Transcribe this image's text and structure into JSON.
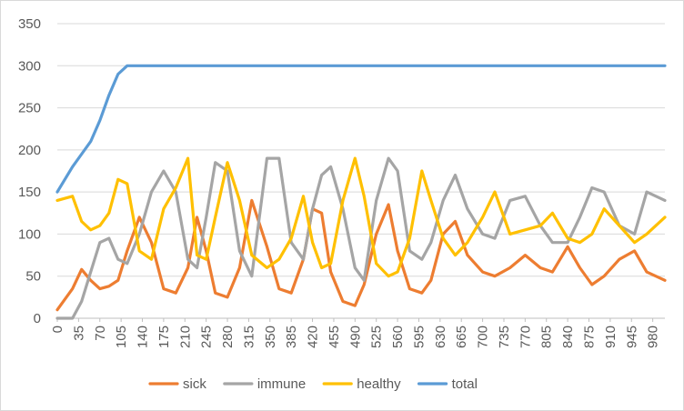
{
  "chart_data": {
    "type": "line",
    "title": "",
    "xlabel": "",
    "ylabel": "",
    "ylim": [
      0,
      350
    ],
    "yticks": [
      0,
      50,
      100,
      150,
      200,
      250,
      300,
      350
    ],
    "xlim": [
      0,
      1000
    ],
    "xticks": [
      0,
      35,
      70,
      105,
      140,
      175,
      210,
      245,
      280,
      315,
      350,
      385,
      420,
      455,
      490,
      525,
      560,
      595,
      630,
      665,
      700,
      735,
      770,
      805,
      840,
      875,
      910,
      945,
      980
    ],
    "xtick_labels": [
      "0",
      "35",
      "70",
      "105",
      "140",
      "175",
      "210",
      "245",
      "280",
      "315",
      "350",
      "385",
      "420",
      "455",
      "490",
      "525",
      "560",
      "595",
      "630",
      "665",
      "700",
      "735",
      "770",
      "805",
      "840",
      "875",
      "910",
      "945",
      "980"
    ],
    "grid": "horizontal",
    "legend": "bottom",
    "x": [
      0,
      25,
      40,
      55,
      70,
      85,
      100,
      115,
      135,
      155,
      175,
      195,
      215,
      230,
      245,
      260,
      280,
      300,
      320,
      345,
      365,
      385,
      405,
      420,
      435,
      450,
      470,
      490,
      505,
      525,
      545,
      560,
      580,
      600,
      615,
      635,
      655,
      675,
      700,
      720,
      745,
      770,
      795,
      815,
      840,
      860,
      880,
      900,
      925,
      950,
      970,
      1000
    ],
    "series": [
      {
        "name": "sick",
        "color": "#ed7d31",
        "values": [
          10,
          35,
          58,
          45,
          35,
          38,
          45,
          80,
          120,
          90,
          35,
          30,
          60,
          120,
          80,
          30,
          25,
          60,
          140,
          85,
          35,
          30,
          70,
          130,
          125,
          55,
          20,
          15,
          40,
          100,
          135,
          80,
          35,
          30,
          45,
          100,
          115,
          75,
          55,
          50,
          60,
          75,
          60,
          55,
          85,
          60,
          40,
          50,
          70,
          80,
          55,
          45
        ]
      },
      {
        "name": "immune",
        "color": "#a5a5a5",
        "values": [
          0,
          0,
          20,
          55,
          90,
          95,
          70,
          65,
          100,
          150,
          175,
          150,
          70,
          60,
          120,
          185,
          175,
          80,
          50,
          190,
          190,
          90,
          70,
          130,
          170,
          180,
          130,
          60,
          45,
          140,
          190,
          175,
          80,
          70,
          90,
          140,
          170,
          130,
          100,
          95,
          140,
          145,
          110,
          90,
          90,
          120,
          155,
          150,
          110,
          100,
          150,
          140
        ]
      },
      {
        "name": "healthy",
        "color": "#ffc000",
        "values": [
          140,
          145,
          115,
          105,
          110,
          125,
          165,
          160,
          80,
          70,
          130,
          155,
          190,
          75,
          70,
          120,
          185,
          140,
          75,
          60,
          70,
          95,
          145,
          90,
          60,
          65,
          140,
          190,
          145,
          65,
          50,
          55,
          95,
          175,
          140,
          95,
          75,
          90,
          120,
          150,
          100,
          105,
          110,
          125,
          95,
          90,
          100,
          130,
          110,
          90,
          100,
          120
        ]
      },
      {
        "name": "total",
        "color": "#5b9bd5",
        "values": [
          150,
          180,
          195,
          210,
          235,
          265,
          290,
          300,
          300,
          300,
          300,
          300,
          300,
          300,
          300,
          300,
          300,
          300,
          300,
          300,
          300,
          300,
          300,
          300,
          300,
          300,
          300,
          300,
          300,
          300,
          300,
          300,
          300,
          300,
          300,
          300,
          300,
          300,
          300,
          300,
          300,
          300,
          300,
          300,
          300,
          300,
          300,
          300,
          300,
          300,
          300,
          300
        ]
      }
    ]
  }
}
